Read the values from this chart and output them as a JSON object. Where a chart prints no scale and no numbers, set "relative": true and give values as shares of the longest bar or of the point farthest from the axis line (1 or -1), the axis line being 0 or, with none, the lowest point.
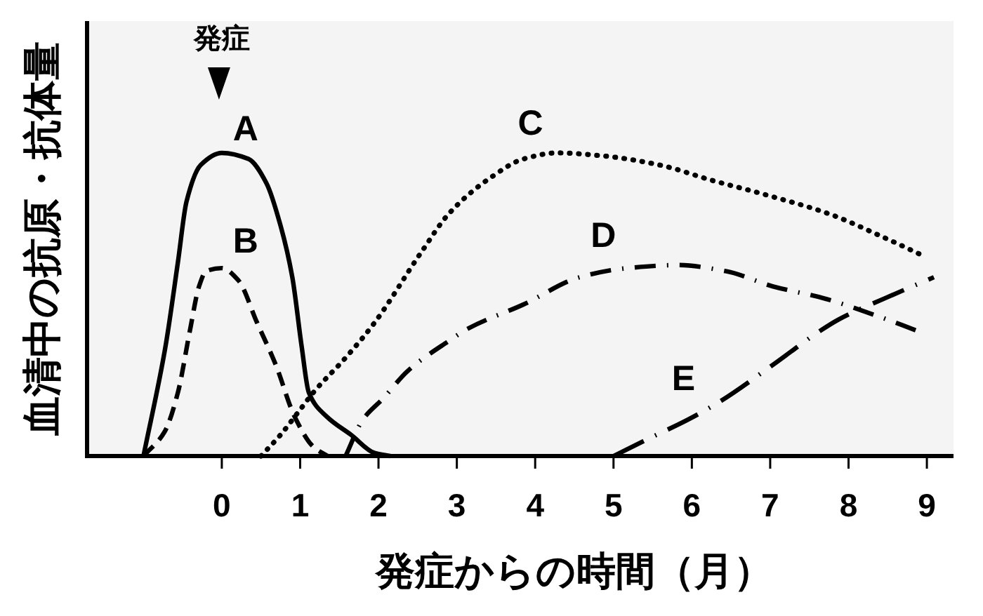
{
  "chart_data": {
    "type": "line",
    "relative": true,
    "xlabel": "発症からの時間（月）",
    "ylabel": "血清中の抗原・抗体量",
    "xlim": [
      -1.72,
      9.34
    ],
    "xticks": [
      0,
      1,
      2,
      3,
      4,
      5,
      6,
      7,
      8,
      9
    ],
    "annotations": [
      "発症"
    ],
    "series": [
      {
        "name": "A",
        "color": "#000000",
        "line_style": "solid",
        "x": [
          -1.0,
          -0.72,
          -0.56,
          -0.45,
          -0.27,
          0,
          0.34,
          0.57,
          0.75,
          0.9,
          1.02,
          1.11,
          1.34,
          1.65,
          1.95,
          2.15
        ],
        "values": [
          0,
          0.36,
          0.64,
          0.84,
          0.96,
          1.0,
          0.98,
          0.9,
          0.76,
          0.59,
          0.36,
          0.21,
          0.13,
          0.07,
          0.01,
          0
        ]
      },
      {
        "name": "B",
        "color": "#000000",
        "line_style": "dashed",
        "x": [
          -1.0,
          -0.73,
          -0.56,
          -0.41,
          -0.29,
          -0.2,
          0,
          0.21,
          0.45,
          0.69,
          0.93,
          1.17,
          1.35
        ],
        "values": [
          0,
          0.08,
          0.21,
          0.41,
          0.56,
          0.61,
          0.62,
          0.58,
          0.44,
          0.3,
          0.13,
          0.03,
          0
        ]
      },
      {
        "name": "C",
        "color": "#000000",
        "line_style": "dotted",
        "x": [
          0.5,
          0.75,
          0.99,
          1.17,
          1.6,
          1.95,
          2.54,
          2.9,
          3.44,
          3.85,
          4.28,
          4.87,
          5.59,
          6.25,
          6.97,
          7.74,
          8.46,
          8.96
        ],
        "values": [
          0,
          0.07,
          0.15,
          0.21,
          0.33,
          0.44,
          0.67,
          0.8,
          0.92,
          0.98,
          1.0,
          0.99,
          0.96,
          0.91,
          0.86,
          0.8,
          0.72,
          0.66
        ]
      },
      {
        "name": "D",
        "color": "#000000",
        "line_style": "dashdot",
        "x": [
          1.58,
          1.8,
          2.06,
          2.37,
          2.9,
          3.14,
          3.85,
          4.57,
          5.18,
          5.82,
          6.43,
          7.03,
          7.69,
          8.28,
          8.91
        ],
        "values": [
          0,
          0.12,
          0.19,
          0.28,
          0.38,
          0.42,
          0.5,
          0.59,
          0.62,
          0.63,
          0.61,
          0.56,
          0.52,
          0.47,
          0.41
        ]
      },
      {
        "name": "E",
        "color": "#000000",
        "line_style": "longdashdot",
        "x": [
          5.0,
          5.47,
          5.95,
          6.36,
          7.03,
          7.62,
          7.87,
          8.46,
          9.09
        ],
        "values": [
          0,
          0.06,
          0.12,
          0.18,
          0.3,
          0.41,
          0.45,
          0.52,
          0.59
        ]
      }
    ]
  }
}
